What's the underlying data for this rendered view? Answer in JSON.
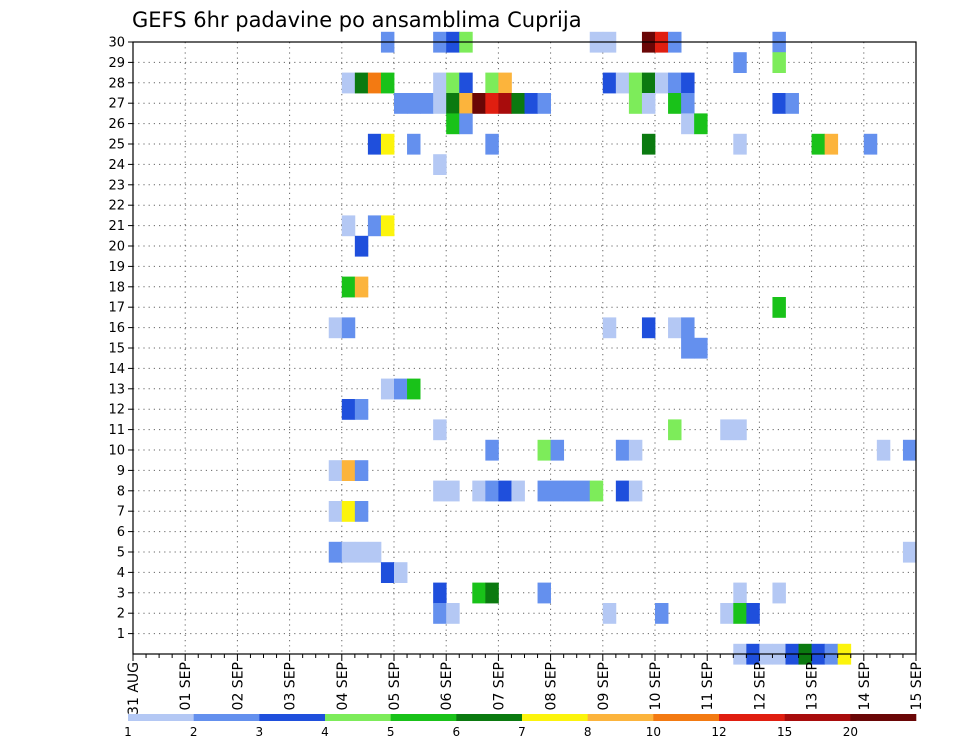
{
  "chart_data": {
    "type": "heatmap",
    "title": "GEFS 6hr padavine po ansamblima Cuprija",
    "x_ticks": [
      "31 AUG",
      "01 SEP",
      "02 SEP",
      "03 SEP",
      "04 SEP",
      "05 SEP",
      "06 SEP",
      "07 SEP",
      "08 SEP",
      "09 SEP",
      "10 SEP",
      "11 SEP",
      "12 SEP",
      "13 SEP",
      "14 SEP",
      "15 SEP"
    ],
    "x_range_steps": [
      0,
      60
    ],
    "y_ticks": [
      1,
      2,
      3,
      4,
      5,
      6,
      7,
      8,
      9,
      10,
      11,
      12,
      13,
      14,
      15,
      16,
      17,
      18,
      19,
      20,
      21,
      22,
      23,
      24,
      25,
      26,
      27,
      28,
      29,
      30
    ],
    "y_range": [
      0,
      30
    ],
    "grid": "dotted",
    "colorbar": {
      "labels": [
        "1",
        "2",
        "3",
        "4",
        "5",
        "6",
        "7",
        "8",
        "10",
        "12",
        "15",
        "20"
      ],
      "colors": [
        "#b4c8f4",
        "#6490ee",
        "#1f4fdc",
        "#7dec5a",
        "#19c219",
        "#0b7a10",
        "#fcf40c",
        "#fcb43c",
        "#f37a12",
        "#e01e10",
        "#a80c0c",
        "#6a0606"
      ]
    },
    "cells": [
      [
        19,
        30,
        2
      ],
      [
        23,
        30,
        2
      ],
      [
        24,
        30,
        3
      ],
      [
        25,
        30,
        4
      ],
      [
        35,
        30,
        1
      ],
      [
        36,
        30,
        1
      ],
      [
        39,
        30,
        12
      ],
      [
        40,
        30,
        10
      ],
      [
        41,
        30,
        2
      ],
      [
        49,
        30,
        2
      ],
      [
        46,
        29,
        2
      ],
      [
        49,
        29,
        4
      ],
      [
        16,
        28,
        1
      ],
      [
        17,
        28,
        6
      ],
      [
        18,
        28,
        9
      ],
      [
        19,
        28,
        5
      ],
      [
        23,
        28,
        1
      ],
      [
        24,
        28,
        4
      ],
      [
        25,
        28,
        3
      ],
      [
        27,
        28,
        4
      ],
      [
        28,
        28,
        8
      ],
      [
        36,
        28,
        3
      ],
      [
        37,
        28,
        1
      ],
      [
        38,
        28,
        4
      ],
      [
        39,
        28,
        6
      ],
      [
        40,
        28,
        1
      ],
      [
        41,
        28,
        2
      ],
      [
        42,
        28,
        3
      ],
      [
        20,
        27,
        2
      ],
      [
        21,
        27,
        2
      ],
      [
        22,
        27,
        2
      ],
      [
        23,
        27,
        1
      ],
      [
        24,
        27,
        6
      ],
      [
        25,
        27,
        8
      ],
      [
        26,
        27,
        12
      ],
      [
        27,
        27,
        10
      ],
      [
        28,
        27,
        11
      ],
      [
        29,
        27,
        6
      ],
      [
        30,
        27,
        3
      ],
      [
        31,
        27,
        2
      ],
      [
        38,
        27,
        4
      ],
      [
        39,
        27,
        1
      ],
      [
        41,
        27,
        5
      ],
      [
        42,
        27,
        2
      ],
      [
        49,
        27,
        3
      ],
      [
        50,
        27,
        2
      ],
      [
        24,
        26,
        5
      ],
      [
        25,
        26,
        2
      ],
      [
        42,
        26,
        1
      ],
      [
        43,
        26,
        5
      ],
      [
        18,
        25,
        3
      ],
      [
        19,
        25,
        7
      ],
      [
        21,
        25,
        2
      ],
      [
        27,
        25,
        2
      ],
      [
        39,
        25,
        6
      ],
      [
        46,
        25,
        1
      ],
      [
        52,
        25,
        5
      ],
      [
        53,
        25,
        8
      ],
      [
        56,
        25,
        2
      ],
      [
        23,
        24,
        1
      ],
      [
        16,
        21,
        1
      ],
      [
        18,
        21,
        2
      ],
      [
        19,
        21,
        7
      ],
      [
        17,
        20,
        3
      ],
      [
        16,
        18,
        5
      ],
      [
        17,
        18,
        8
      ],
      [
        49,
        17,
        5
      ],
      [
        15,
        16,
        1
      ],
      [
        16,
        16,
        2
      ],
      [
        36,
        16,
        1
      ],
      [
        39,
        16,
        3
      ],
      [
        41,
        16,
        1
      ],
      [
        42,
        16,
        2
      ],
      [
        42,
        15,
        2
      ],
      [
        43,
        15,
        2
      ],
      [
        19,
        13,
        1
      ],
      [
        20,
        13,
        2
      ],
      [
        21,
        13,
        5
      ],
      [
        16,
        12,
        3
      ],
      [
        17,
        12,
        2
      ],
      [
        23,
        11,
        1
      ],
      [
        41,
        11,
        4
      ],
      [
        45,
        11,
        1
      ],
      [
        46,
        11,
        1
      ],
      [
        27,
        10,
        2
      ],
      [
        31,
        10,
        4
      ],
      [
        32,
        10,
        2
      ],
      [
        37,
        10,
        2
      ],
      [
        38,
        10,
        1
      ],
      [
        57,
        10,
        1
      ],
      [
        59,
        10,
        2
      ],
      [
        15,
        9,
        1
      ],
      [
        16,
        9,
        8
      ],
      [
        17,
        9,
        2
      ],
      [
        23,
        8,
        1
      ],
      [
        24,
        8,
        1
      ],
      [
        26,
        8,
        1
      ],
      [
        27,
        8,
        2
      ],
      [
        28,
        8,
        3
      ],
      [
        29,
        8,
        1
      ],
      [
        31,
        8,
        2
      ],
      [
        32,
        8,
        2
      ],
      [
        33,
        8,
        2
      ],
      [
        34,
        8,
        2
      ],
      [
        35,
        8,
        4
      ],
      [
        37,
        8,
        3
      ],
      [
        38,
        8,
        1
      ],
      [
        15,
        7,
        1
      ],
      [
        16,
        7,
        7
      ],
      [
        17,
        7,
        2
      ],
      [
        15,
        5,
        2
      ],
      [
        16,
        5,
        1
      ],
      [
        17,
        5,
        1
      ],
      [
        18,
        5,
        1
      ],
      [
        59,
        5,
        1
      ],
      [
        19,
        4,
        3
      ],
      [
        20,
        4,
        1
      ],
      [
        23,
        3,
        3
      ],
      [
        26,
        3,
        5
      ],
      [
        27,
        3,
        6
      ],
      [
        31,
        3,
        2
      ],
      [
        46,
        3,
        1
      ],
      [
        49,
        3,
        1
      ],
      [
        23,
        2,
        2
      ],
      [
        24,
        2,
        1
      ],
      [
        36,
        2,
        1
      ],
      [
        40,
        2,
        2
      ],
      [
        45,
        2,
        1
      ],
      [
        46,
        2,
        5
      ],
      [
        47,
        2,
        3
      ],
      [
        46,
        0,
        1
      ],
      [
        47,
        0,
        3
      ],
      [
        48,
        0,
        1
      ],
      [
        49,
        0,
        1
      ],
      [
        50,
        0,
        3
      ],
      [
        51,
        0,
        6
      ],
      [
        52,
        0,
        3
      ],
      [
        53,
        0,
        2
      ],
      [
        54,
        0,
        7
      ]
    ]
  }
}
